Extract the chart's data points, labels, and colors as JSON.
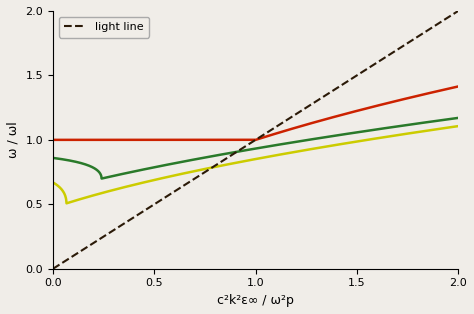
{
  "xlabel": "c²k²ε∞ / ω²p",
  "ylabel": "ω / ωl",
  "xlim": [
    0,
    2.0
  ],
  "ylim": [
    0.0,
    2.0
  ],
  "xticks": [
    0.0,
    0.5,
    1.0,
    1.5,
    2.0
  ],
  "yticks": [
    0.0,
    0.5,
    1.0,
    1.5,
    2.0
  ],
  "light_line_color": "#2b1a08",
  "curve_colors": [
    "#cc2200",
    "#2a7a2a",
    "#cccc00"
  ],
  "omega_t_values": [
    1.0,
    0.86,
    0.67
  ],
  "legend_label": "light line",
  "background_color": "#f0ede8",
  "figsize": [
    4.74,
    3.14
  ],
  "dpi": 100
}
